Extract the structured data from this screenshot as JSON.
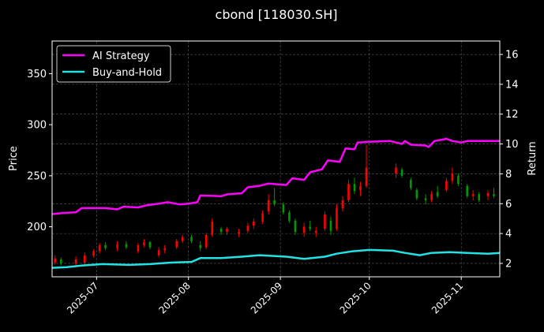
{
  "chart_data": {
    "type": "line",
    "title": "cbond [118030.SH]",
    "ylabel_left": "Price",
    "ylabel_right": "Return",
    "grid": true,
    "legend_placement": "top-left",
    "colors": {
      "background": "#000000",
      "frame": "#ffffff",
      "ai_strategy": "#ff00ff",
      "buy_and_hold": "#22e3e3",
      "candle_up": "#ff0000",
      "candle_down": "#009900",
      "grid": "#5a5a5a"
    },
    "x_range": [
      "2025-06-16",
      "2025-11-14"
    ],
    "x_ticks": [
      "2025-07",
      "2025-08",
      "2025-09",
      "2025-10",
      "2025-11"
    ],
    "x_tick_dates": [
      "2025-07-01",
      "2025-08-01",
      "2025-09-01",
      "2025-10-01",
      "2025-11-01"
    ],
    "ylim_left": [
      151,
      382
    ],
    "ylim_right": [
      1.1,
      16.9
    ],
    "y_ticks_left": [
      200,
      250,
      300,
      350
    ],
    "y_ticks_right": [
      2,
      4,
      6,
      8,
      10,
      12,
      14,
      16
    ],
    "series": [
      {
        "name": "AI Strategy",
        "axis": "right",
        "points": [
          [
            "2025-06-16",
            5.3
          ],
          [
            "2025-06-20",
            5.38
          ],
          [
            "2025-06-24",
            5.42
          ],
          [
            "2025-06-26",
            5.7
          ],
          [
            "2025-07-04",
            5.7
          ],
          [
            "2025-07-08",
            5.62
          ],
          [
            "2025-07-10",
            5.8
          ],
          [
            "2025-07-15",
            5.75
          ],
          [
            "2025-07-18",
            5.9
          ],
          [
            "2025-07-22",
            6.0
          ],
          [
            "2025-07-25",
            6.1
          ],
          [
            "2025-07-29",
            5.95
          ],
          [
            "2025-08-01",
            6.0
          ],
          [
            "2025-08-04",
            6.1
          ],
          [
            "2025-08-05",
            6.55
          ],
          [
            "2025-08-12",
            6.5
          ],
          [
            "2025-08-14",
            6.62
          ],
          [
            "2025-08-19",
            6.7
          ],
          [
            "2025-08-21",
            7.1
          ],
          [
            "2025-08-25",
            7.2
          ],
          [
            "2025-08-28",
            7.35
          ],
          [
            "2025-09-03",
            7.25
          ],
          [
            "2025-09-05",
            7.7
          ],
          [
            "2025-09-09",
            7.6
          ],
          [
            "2025-09-11",
            8.1
          ],
          [
            "2025-09-15",
            8.3
          ],
          [
            "2025-09-17",
            8.9
          ],
          [
            "2025-09-21",
            8.8
          ],
          [
            "2025-09-23",
            9.7
          ],
          [
            "2025-09-26",
            9.65
          ],
          [
            "2025-09-27",
            10.1
          ],
          [
            "2025-10-01",
            10.15
          ],
          [
            "2025-10-08",
            10.2
          ],
          [
            "2025-10-10",
            10.1
          ],
          [
            "2025-10-12",
            10.0
          ],
          [
            "2025-10-13",
            10.2
          ],
          [
            "2025-10-15",
            9.95
          ],
          [
            "2025-10-20",
            9.9
          ],
          [
            "2025-10-21",
            9.8
          ],
          [
            "2025-10-23",
            10.2
          ],
          [
            "2025-10-27",
            10.35
          ],
          [
            "2025-10-29",
            10.2
          ],
          [
            "2025-11-01",
            10.1
          ],
          [
            "2025-11-03",
            10.2
          ],
          [
            "2025-11-07",
            10.2
          ],
          [
            "2025-11-14",
            10.2
          ]
        ]
      },
      {
        "name": "Buy-and-Hold",
        "axis": "right",
        "points": [
          [
            "2025-06-16",
            1.7
          ],
          [
            "2025-06-21",
            1.75
          ],
          [
            "2025-06-26",
            1.85
          ],
          [
            "2025-07-03",
            1.95
          ],
          [
            "2025-07-12",
            1.9
          ],
          [
            "2025-07-19",
            1.95
          ],
          [
            "2025-07-26",
            2.05
          ],
          [
            "2025-08-02",
            2.1
          ],
          [
            "2025-08-05",
            2.35
          ],
          [
            "2025-08-12",
            2.35
          ],
          [
            "2025-08-19",
            2.45
          ],
          [
            "2025-08-25",
            2.55
          ],
          [
            "2025-09-03",
            2.45
          ],
          [
            "2025-09-09",
            2.3
          ],
          [
            "2025-09-16",
            2.45
          ],
          [
            "2025-09-20",
            2.65
          ],
          [
            "2025-09-25",
            2.8
          ],
          [
            "2025-10-01",
            2.9
          ],
          [
            "2025-10-09",
            2.85
          ],
          [
            "2025-10-13",
            2.7
          ],
          [
            "2025-10-18",
            2.55
          ],
          [
            "2025-10-22",
            2.7
          ],
          [
            "2025-10-28",
            2.75
          ],
          [
            "2025-11-03",
            2.7
          ],
          [
            "2025-11-10",
            2.65
          ],
          [
            "2025-11-14",
            2.7
          ]
        ]
      },
      {
        "name": "Price candles",
        "axis": "left",
        "candles": [
          [
            "2025-06-17",
            165,
            172,
            163,
            169
          ],
          [
            "2025-06-19",
            168,
            170,
            162,
            164
          ],
          [
            "2025-06-24",
            164,
            171,
            162,
            168
          ],
          [
            "2025-06-27",
            165,
            175,
            163,
            172
          ],
          [
            "2025-06-30",
            172,
            178,
            170,
            176
          ],
          [
            "2025-07-02",
            176,
            184,
            174,
            182
          ],
          [
            "2025-07-04",
            182,
            185,
            177,
            179
          ],
          [
            "2025-07-08",
            179,
            186,
            176,
            183
          ],
          [
            "2025-07-11",
            183,
            186,
            178,
            180
          ],
          [
            "2025-07-15",
            176,
            184,
            174,
            182
          ],
          [
            "2025-07-17",
            182,
            188,
            180,
            185
          ],
          [
            "2025-07-19",
            185,
            186,
            178,
            180
          ],
          [
            "2025-07-22",
            172,
            180,
            170,
            177
          ],
          [
            "2025-07-24",
            177,
            182,
            174,
            179
          ],
          [
            "2025-07-28",
            180,
            188,
            178,
            186
          ],
          [
            "2025-07-30",
            186,
            192,
            184,
            190
          ],
          [
            "2025-08-02",
            190,
            192,
            184,
            186
          ],
          [
            "2025-08-05",
            182,
            186,
            176,
            179
          ],
          [
            "2025-08-07",
            180,
            194,
            178,
            192
          ],
          [
            "2025-08-09",
            192,
            208,
            190,
            205
          ],
          [
            "2025-08-12",
            198,
            200,
            192,
            195
          ],
          [
            "2025-08-14",
            195,
            200,
            192,
            198
          ],
          [
            "2025-08-18",
            193,
            198,
            190,
            195
          ],
          [
            "2025-08-21",
            196,
            204,
            194,
            201
          ],
          [
            "2025-08-23",
            201,
            208,
            198,
            205
          ],
          [
            "2025-08-26",
            205,
            216,
            203,
            213
          ],
          [
            "2025-08-28",
            215,
            232,
            212,
            226
          ],
          [
            "2025-08-30",
            226,
            238,
            220,
            222
          ],
          [
            "2025-09-02",
            222,
            224,
            212,
            214
          ],
          [
            "2025-09-04",
            214,
            216,
            204,
            206
          ],
          [
            "2025-09-06",
            206,
            208,
            192,
            195
          ],
          [
            "2025-09-09",
            194,
            204,
            190,
            200
          ],
          [
            "2025-09-11",
            200,
            206,
            196,
            198
          ],
          [
            "2025-09-13",
            194,
            200,
            190,
            196
          ],
          [
            "2025-09-16",
            198,
            215,
            196,
            212
          ],
          [
            "2025-09-18",
            206,
            210,
            192,
            196
          ],
          [
            "2025-09-20",
            198,
            222,
            196,
            218
          ],
          [
            "2025-09-22",
            218,
            230,
            215,
            226
          ],
          [
            "2025-09-24",
            226,
            246,
            224,
            242
          ],
          [
            "2025-09-26",
            242,
            248,
            232,
            235
          ],
          [
            "2025-09-28",
            236,
            244,
            230,
            240
          ],
          [
            "2025-09-30",
            240,
            280,
            238,
            258
          ],
          [
            "2025-10-10",
            252,
            262,
            248,
            258
          ],
          [
            "2025-10-12",
            256,
            258,
            248,
            250
          ],
          [
            "2025-10-15",
            246,
            248,
            236,
            238
          ],
          [
            "2025-10-17",
            236,
            238,
            226,
            228
          ],
          [
            "2025-10-20",
            228,
            232,
            222,
            226
          ],
          [
            "2025-10-22",
            226,
            235,
            224,
            232
          ],
          [
            "2025-10-24",
            234,
            240,
            228,
            230
          ],
          [
            "2025-10-27",
            236,
            248,
            234,
            245
          ],
          [
            "2025-10-29",
            245,
            258,
            242,
            252
          ],
          [
            "2025-10-31",
            250,
            252,
            240,
            242
          ],
          [
            "2025-11-03",
            240,
            242,
            228,
            230
          ],
          [
            "2025-11-05",
            230,
            236,
            226,
            232
          ],
          [
            "2025-11-07",
            232,
            234,
            224,
            226
          ],
          [
            "2025-11-10",
            230,
            236,
            226,
            233
          ],
          [
            "2025-11-12",
            232,
            238,
            228,
            230
          ]
        ]
      }
    ]
  }
}
